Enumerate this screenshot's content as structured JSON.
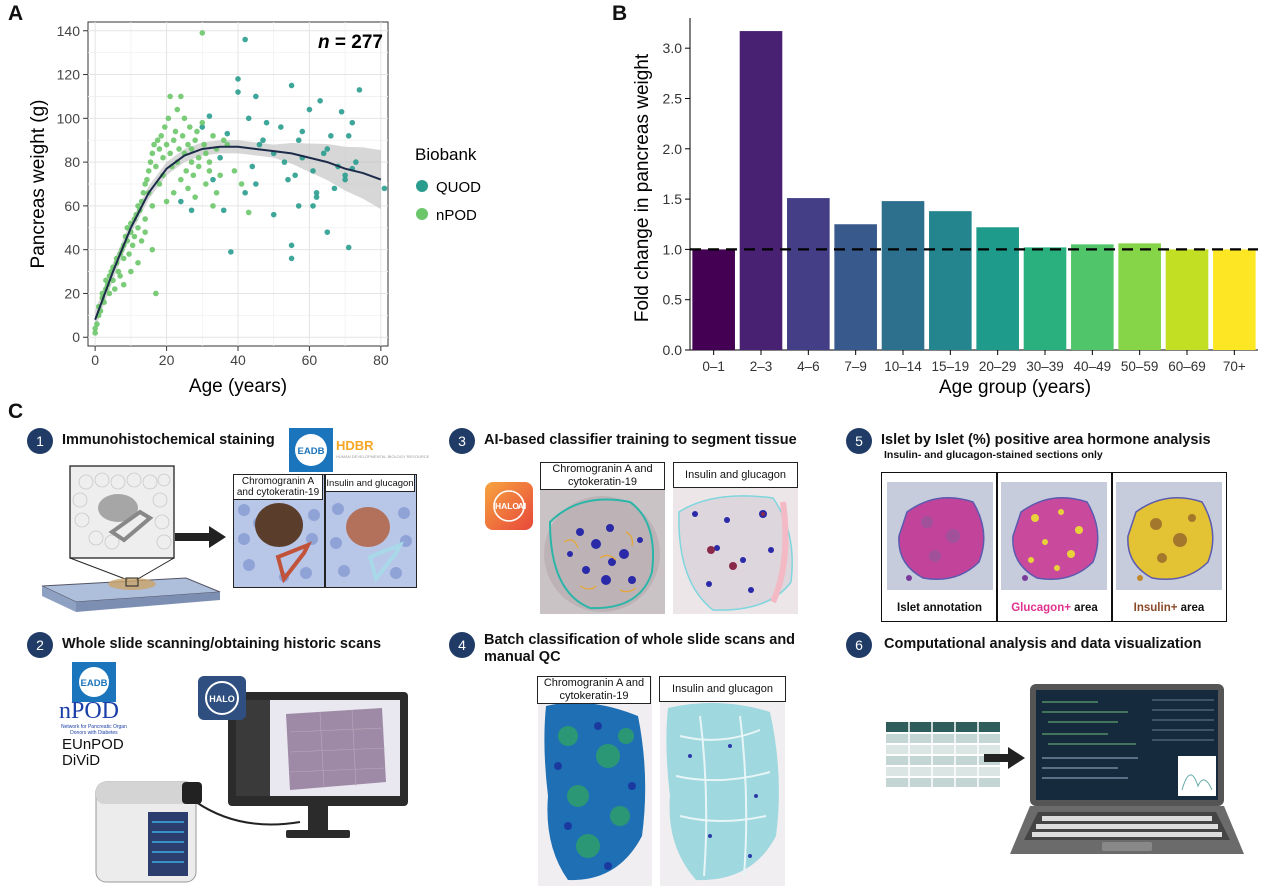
{
  "panels": {
    "a": "A",
    "b": "B",
    "c": "C"
  },
  "scatter": {
    "n_label_prefix": "n",
    "n_label_suffix": " = 277",
    "xlabel": "Age (years)",
    "ylabel": "Pancreas weight (g)",
    "legend_title": "Biobank",
    "legend_items": [
      "QUOD",
      "nPOD"
    ],
    "colors": {
      "QUOD": "#2a9d8f",
      "nPOD": "#6cc66a",
      "fit": "#1d2b4a",
      "ci": "#bdbdbd"
    }
  },
  "chart_data": [
    {
      "type": "scatter",
      "title": "n = 277",
      "xlabel": "Age (years)",
      "ylabel": "Pancreas weight (g)",
      "xlim": [
        -2,
        82
      ],
      "ylim": [
        -4,
        144
      ],
      "xticks": [
        0,
        20,
        40,
        60,
        80
      ],
      "yticks": [
        0,
        20,
        40,
        60,
        80,
        100,
        120,
        140
      ],
      "legend": "right",
      "series": [
        {
          "name": "QUOD",
          "points": [
            [
              24,
              62
            ],
            [
              27,
              58
            ],
            [
              30,
              96
            ],
            [
              32,
              101
            ],
            [
              35,
              82
            ],
            [
              37,
              93
            ],
            [
              38,
              39
            ],
            [
              40,
              118
            ],
            [
              40,
              112
            ],
            [
              42,
              136
            ],
            [
              43,
              100
            ],
            [
              44,
              78
            ],
            [
              45,
              110
            ],
            [
              46,
              88
            ],
            [
              47,
              90
            ],
            [
              48,
              98
            ],
            [
              50,
              84
            ],
            [
              52,
              96
            ],
            [
              53,
              80
            ],
            [
              54,
              72
            ],
            [
              55,
              115
            ],
            [
              55,
              42
            ],
            [
              55,
              36
            ],
            [
              56,
              74
            ],
            [
              57,
              90
            ],
            [
              57,
              60
            ],
            [
              58,
              94
            ],
            [
              58,
              82
            ],
            [
              60,
              104
            ],
            [
              61,
              76
            ],
            [
              61,
              60
            ],
            [
              62,
              64
            ],
            [
              62,
              66
            ],
            [
              63,
              108
            ],
            [
              64,
              84
            ],
            [
              65,
              86
            ],
            [
              65,
              48
            ],
            [
              66,
              92
            ],
            [
              67,
              68
            ],
            [
              68,
              78
            ],
            [
              69,
              103
            ],
            [
              70,
              72
            ],
            [
              70,
              74
            ],
            [
              71,
              92
            ],
            [
              71,
              41
            ],
            [
              72,
              98
            ],
            [
              72,
              77
            ],
            [
              73,
              80
            ],
            [
              74,
              113
            ],
            [
              81,
              68
            ],
            [
              45,
              70
            ],
            [
              50,
              56
            ],
            [
              42,
              66
            ],
            [
              36,
              58
            ],
            [
              33,
              72
            ]
          ]
        },
        {
          "name": "nPOD",
          "points": [
            [
              0,
              2
            ],
            [
              0,
              4
            ],
            [
              0.5,
              6
            ],
            [
              1,
              10
            ],
            [
              1,
              14
            ],
            [
              1.5,
              12
            ],
            [
              2,
              18
            ],
            [
              2,
              20
            ],
            [
              2.5,
              16
            ],
            [
              3,
              22
            ],
            [
              3,
              26
            ],
            [
              3.5,
              24
            ],
            [
              4,
              20
            ],
            [
              4,
              28
            ],
            [
              4.5,
              30
            ],
            [
              5,
              26
            ],
            [
              5,
              32
            ],
            [
              5.5,
              22
            ],
            [
              6,
              34
            ],
            [
              6,
              36
            ],
            [
              6.5,
              30
            ],
            [
              7,
              38
            ],
            [
              7,
              28
            ],
            [
              7.5,
              40
            ],
            [
              8,
              42
            ],
            [
              8,
              36
            ],
            [
              8.5,
              46
            ],
            [
              9,
              44
            ],
            [
              9,
              50
            ],
            [
              9.5,
              38
            ],
            [
              10,
              52
            ],
            [
              10,
              48
            ],
            [
              10.5,
              42
            ],
            [
              11,
              54
            ],
            [
              11,
              46
            ],
            [
              11.5,
              56
            ],
            [
              12,
              60
            ],
            [
              12,
              50
            ],
            [
              12.5,
              58
            ],
            [
              13,
              62
            ],
            [
              13,
              44
            ],
            [
              13.5,
              66
            ],
            [
              14,
              70
            ],
            [
              14,
              54
            ],
            [
              14.5,
              72
            ],
            [
              15,
              76
            ],
            [
              15,
              66
            ],
            [
              15.5,
              80
            ],
            [
              16,
              84
            ],
            [
              16,
              60
            ],
            [
              16.5,
              88
            ],
            [
              17,
              78
            ],
            [
              17,
              20
            ],
            [
              17.5,
              90
            ],
            [
              18,
              86
            ],
            [
              18,
              70
            ],
            [
              18.5,
              92
            ],
            [
              19,
              82
            ],
            [
              19,
              74
            ],
            [
              19.5,
              96
            ],
            [
              20,
              88
            ],
            [
              20,
              62
            ],
            [
              20.5,
              100
            ],
            [
              21,
              84
            ],
            [
              21,
              110
            ],
            [
              21.5,
              78
            ],
            [
              22,
              90
            ],
            [
              22,
              66
            ],
            [
              22.5,
              94
            ],
            [
              23,
              104
            ],
            [
              23,
              80
            ],
            [
              23.5,
              86
            ],
            [
              24,
              110
            ],
            [
              24,
              72
            ],
            [
              24.5,
              92
            ],
            [
              25,
              84
            ],
            [
              25,
              100
            ],
            [
              25.5,
              76
            ],
            [
              26,
              88
            ],
            [
              26,
              68
            ],
            [
              26.5,
              96
            ],
            [
              27,
              80
            ],
            [
              27,
              86
            ],
            [
              27.5,
              74
            ],
            [
              28,
              90
            ],
            [
              28,
              64
            ],
            [
              28.5,
              94
            ],
            [
              29,
              82
            ],
            [
              29,
              78
            ],
            [
              30,
              139
            ],
            [
              30,
              98
            ],
            [
              30.5,
              88
            ],
            [
              31,
              84
            ],
            [
              31,
              70
            ],
            [
              32,
              80
            ],
            [
              32,
              76
            ],
            [
              33,
              92
            ],
            [
              33,
              60
            ],
            [
              34,
              86
            ],
            [
              34,
              66
            ],
            [
              35,
              74
            ],
            [
              36,
              90
            ],
            [
              37,
              88
            ],
            [
              39,
              76
            ],
            [
              41,
              70
            ],
            [
              43,
              57
            ],
            [
              16,
              40
            ],
            [
              12,
              34
            ],
            [
              8,
              24
            ],
            [
              10,
              30
            ],
            [
              14,
              48
            ]
          ]
        }
      ],
      "fit_curve": [
        [
          0,
          8
        ],
        [
          5,
          30
        ],
        [
          10,
          50
        ],
        [
          15,
          66
        ],
        [
          20,
          77
        ],
        [
          25,
          83
        ],
        [
          30,
          86
        ],
        [
          35,
          87
        ],
        [
          40,
          87
        ],
        [
          45,
          86
        ],
        [
          50,
          85
        ],
        [
          55,
          84
        ],
        [
          60,
          82
        ],
        [
          65,
          80
        ],
        [
          70,
          77
        ],
        [
          75,
          75
        ],
        [
          80,
          72
        ]
      ]
    },
    {
      "type": "bar",
      "xlabel": "Age group (years)",
      "ylabel": "Fold change in pancreas weight",
      "categories": [
        "0–1",
        "2–3",
        "4–6",
        "7–9",
        "10–14",
        "15–19",
        "20–29",
        "30–39",
        "40–49",
        "50–59",
        "60–69",
        "70+"
      ],
      "values": [
        1.0,
        3.17,
        1.51,
        1.25,
        1.48,
        1.38,
        1.22,
        1.02,
        1.05,
        1.06,
        1.0,
        1.0
      ],
      "colors": [
        "#440154",
        "#482173",
        "#433e85",
        "#38598c",
        "#2d708e",
        "#25858e",
        "#1e9b8a",
        "#2ab07f",
        "#51c56a",
        "#86d549",
        "#c2df23",
        "#fde725"
      ],
      "ylim": [
        0,
        3.3
      ],
      "yticks": [
        0.0,
        0.5,
        1.0,
        1.5,
        2.0,
        2.5,
        3.0
      ],
      "reference_line": 1.0
    }
  ],
  "steps": [
    {
      "num": "1",
      "title": "Immunohistochemical staining"
    },
    {
      "num": "2",
      "title": "Whole slide scanning/obtaining historic scans"
    },
    {
      "num": "3",
      "title": "AI-based classifier training to segment tissue"
    },
    {
      "num": "4",
      "title": "Batch classification of whole slide scans and",
      "title2": "manual QC"
    },
    {
      "num": "5",
      "title": "Islet by Islet (%) positive area hormone analysis",
      "subtitle": "Insulin- and glucagon-stained sections only"
    },
    {
      "num": "6",
      "title": "Computational analysis and data visualization"
    }
  ],
  "labels": {
    "chromo_short_1": "Chromogranin A",
    "chromo_short_2": "and cytokeratin-19",
    "insulin_glucagon": "Insulin and glucagon",
    "chromo_1": "Chromogranin A and",
    "chromo_2": "cytokeratin-19",
    "islet_annotation": "Islet annotation",
    "glucagon": "Glucagon+",
    "insulin": "Insulin+",
    "area": " area"
  },
  "logos": {
    "eadb": "EADB",
    "hdbr": "HDBR",
    "hdbr_sub": "HUMAN DEVELOPMENTAL BIOLOGY RESOURCE",
    "npod": "nPOD",
    "npod_sub1": "Network for Pancreatic Organ",
    "npod_sub2": "Donors with Diabetes",
    "eunpod": "EUnPOD",
    "divid": "DiViD",
    "halo": "HALO",
    "halo_ai_1": "HALO",
    "halo_ai_2": "AI"
  },
  "legend_colors": {
    "glucagon": "#e0338f",
    "insulin": "#8a4a2a"
  }
}
